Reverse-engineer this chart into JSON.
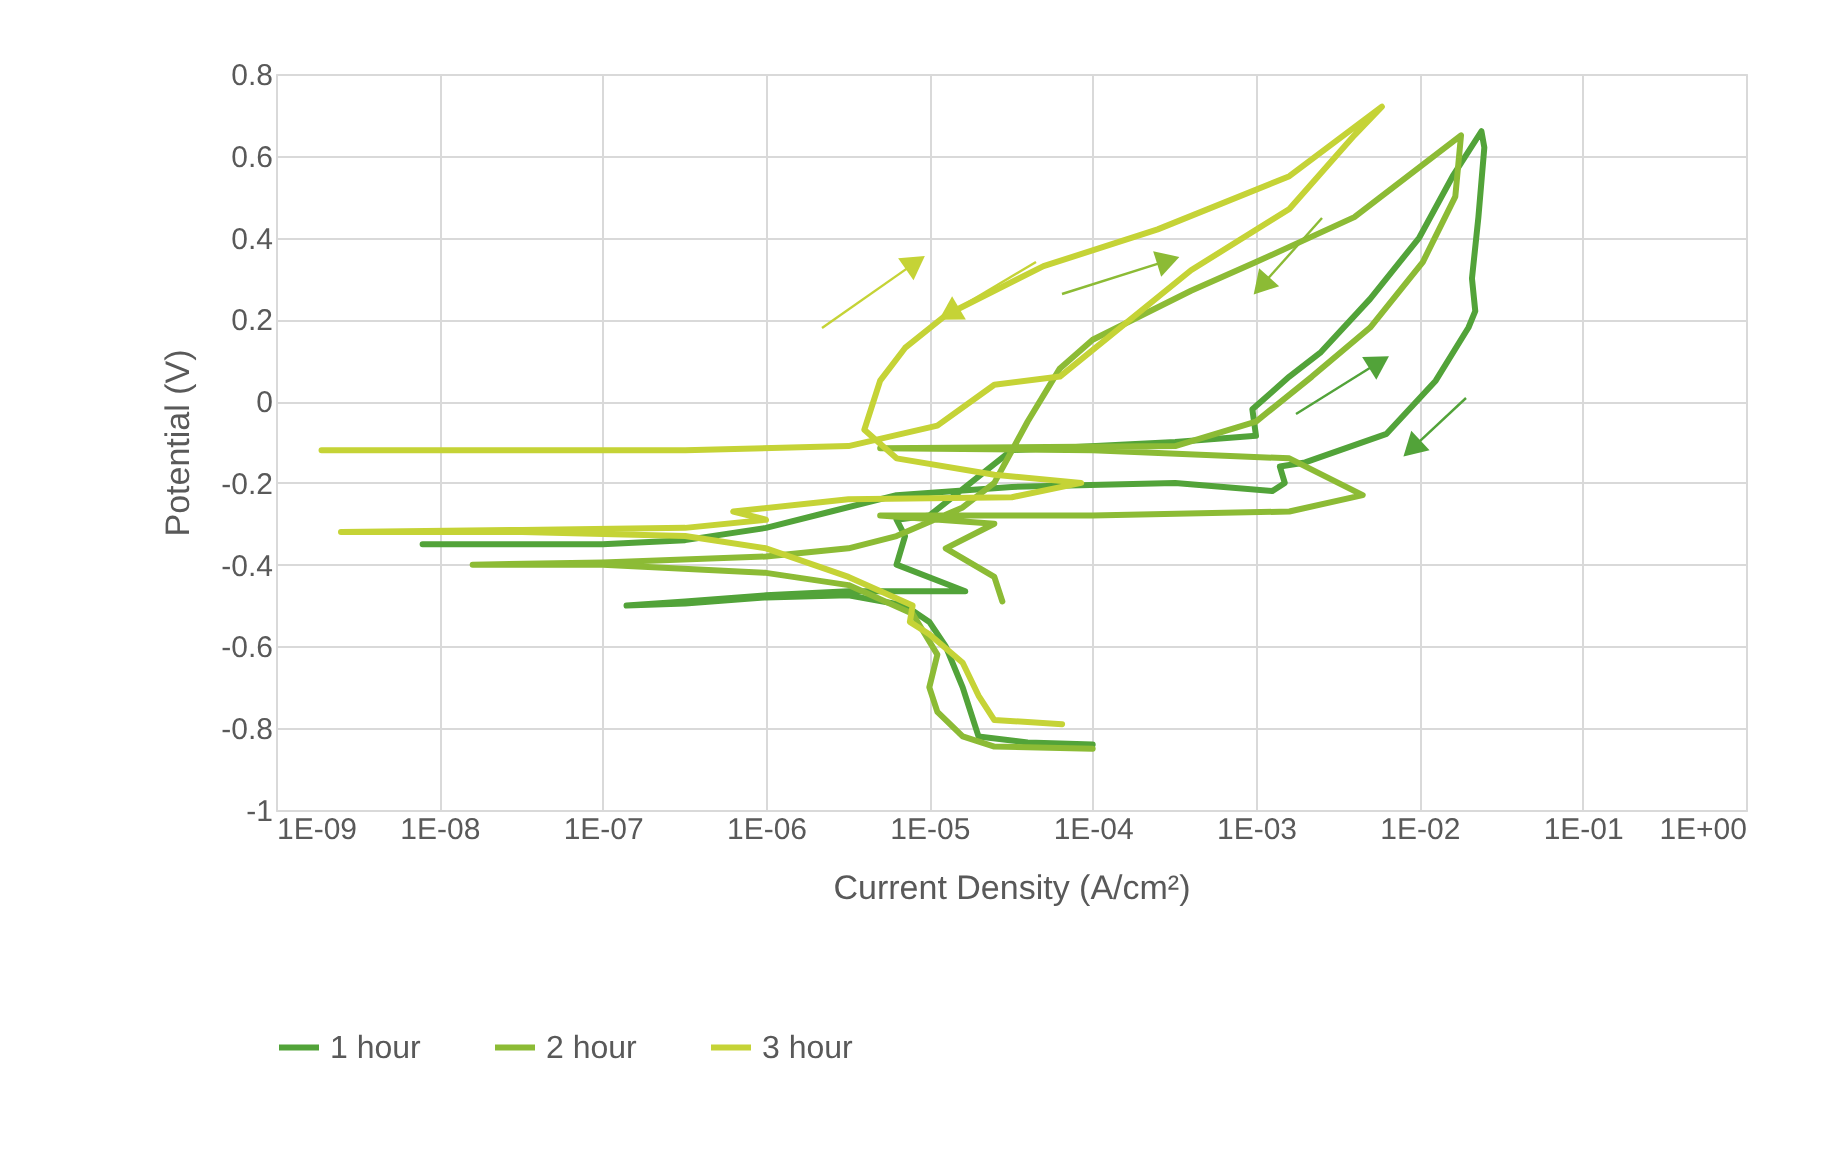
{
  "chart_data": {
    "type": "line",
    "xlabel": "Current Density (A/cm²)",
    "ylabel": "Potential (V)",
    "log": "x",
    "xlim": [
      1e-09,
      1
    ],
    "ylim": [
      -1,
      0.8
    ],
    "xticks": [
      {
        "value": 1e-09,
        "label": "1E-09"
      },
      {
        "value": 1e-08,
        "label": "1E-08"
      },
      {
        "value": 1e-07,
        "label": "1E-07"
      },
      {
        "value": 1e-06,
        "label": "1E-06"
      },
      {
        "value": 1e-05,
        "label": "1E-05"
      },
      {
        "value": 0.0001,
        "label": "1E-04"
      },
      {
        "value": 0.001,
        "label": "1E-03"
      },
      {
        "value": 0.01,
        "label": "1E-02"
      },
      {
        "value": 0.1,
        "label": "1E-01"
      },
      {
        "value": 1,
        "label": "1E+00"
      }
    ],
    "yticks": [
      -1,
      -0.8,
      -0.6,
      -0.4,
      -0.2,
      0,
      0.2,
      0.4,
      0.6,
      0.8
    ],
    "grid": true,
    "legend": "bottom",
    "marker": "none",
    "line_style": "solid",
    "series": [
      {
        "name": "1 hour",
        "color": "#52a339",
        "x": [
          0.0001,
          4e-05,
          2e-05,
          1.6e-05,
          1.26e-05,
          1e-05,
          7.1e-06,
          3.2e-06,
          1e-06,
          3.2e-07,
          1.4e-07,
          3.2e-07,
          1e-06,
          3.2e-06,
          1.66e-05,
          6.3e-06,
          7.1e-06,
          6.3e-06,
          1e-05,
          3.2e-05,
          0.00032,
          0.001,
          0.00095,
          0.0016,
          0.0025,
          0.005,
          0.01,
          0.016,
          0.024,
          0.025,
          0.023,
          0.021,
          0.022,
          0.02,
          0.0126,
          0.0063,
          0.002,
          0.0014,
          0.0015,
          0.00126,
          0.00032,
          3.2e-05,
          6.3e-06,
          2.5e-06,
          1e-06,
          3.2e-07,
          1e-07,
          7.9e-09
        ],
        "values": [
          -0.84,
          -0.835,
          -0.82,
          -0.7,
          -0.6,
          -0.54,
          -0.5,
          -0.475,
          -0.48,
          -0.495,
          -0.5,
          -0.49,
          -0.475,
          -0.465,
          -0.465,
          -0.4,
          -0.33,
          -0.29,
          -0.28,
          -0.12,
          -0.1,
          -0.085,
          -0.02,
          0.06,
          0.12,
          0.25,
          0.4,
          0.55,
          0.66,
          0.62,
          0.45,
          0.3,
          0.22,
          0.18,
          0.05,
          -0.08,
          -0.15,
          -0.16,
          -0.2,
          -0.22,
          -0.2,
          -0.21,
          -0.23,
          -0.27,
          -0.31,
          -0.34,
          -0.35,
          -0.35
        ]
      },
      {
        "name": "2 hour",
        "color": "#8cbb35",
        "x": [
          0.0001,
          2.5e-05,
          1.6e-05,
          1.12e-05,
          1e-05,
          1.12e-05,
          7.9e-06,
          3.2e-06,
          1e-06,
          1e-07,
          1.6e-08,
          1e-07,
          1e-06,
          3.2e-06,
          6.3e-06,
          1.6e-05,
          2.5e-05,
          4e-05,
          6.3e-05,
          0.0001,
          0.0004,
          0.001,
          0.004,
          0.018,
          0.0166,
          0.0105,
          0.005,
          0.0022,
          0.001,
          0.00032,
          5e-06,
          0.0001,
          0.0016,
          0.0045,
          0.0016,
          0.0001,
          5e-06,
          2.5e-05,
          1.26e-05,
          2.5e-05,
          2.8e-05
        ],
        "values": [
          -0.85,
          -0.845,
          -0.82,
          -0.76,
          -0.7,
          -0.62,
          -0.52,
          -0.45,
          -0.42,
          -0.4,
          -0.4,
          -0.395,
          -0.38,
          -0.36,
          -0.33,
          -0.26,
          -0.2,
          -0.05,
          0.08,
          0.15,
          0.27,
          0.34,
          0.45,
          0.65,
          0.5,
          0.34,
          0.18,
          0.06,
          -0.05,
          -0.11,
          -0.115,
          -0.12,
          -0.14,
          -0.23,
          -0.27,
          -0.28,
          -0.28,
          -0.3,
          -0.36,
          -0.43,
          -0.49
        ]
      },
      {
        "name": "3 hour",
        "color": "#c5d336",
        "x": [
          6.5e-05,
          2.5e-05,
          2e-05,
          1.6e-05,
          1e-05,
          7.6e-06,
          7.9e-06,
          3.2e-06,
          1e-06,
          3.2e-07,
          3.2e-08,
          2.5e-09,
          3.2e-08,
          3.2e-07,
          1e-06,
          6.3e-07,
          3.2e-06,
          3.2e-05,
          8.5e-05,
          2.5e-05,
          6.3e-06,
          4e-06,
          5e-06,
          7.1e-06,
          1.26e-05,
          5e-05,
          0.00025,
          0.0016,
          0.0059,
          0.004,
          0.0016,
          0.0004,
          6.3e-05,
          2.5e-05,
          1.12e-05,
          3.2e-06,
          3.2e-07,
          1.9e-09
        ],
        "values": [
          -0.79,
          -0.78,
          -0.72,
          -0.64,
          -0.57,
          -0.54,
          -0.5,
          -0.43,
          -0.36,
          -0.33,
          -0.32,
          -0.32,
          -0.315,
          -0.31,
          -0.29,
          -0.27,
          -0.24,
          -0.235,
          -0.2,
          -0.18,
          -0.14,
          -0.07,
          0.05,
          0.13,
          0.21,
          0.33,
          0.42,
          0.55,
          0.72,
          0.65,
          0.47,
          0.32,
          0.06,
          0.04,
          -0.06,
          -0.11,
          -0.12,
          -0.12
        ]
      }
    ]
  }
}
